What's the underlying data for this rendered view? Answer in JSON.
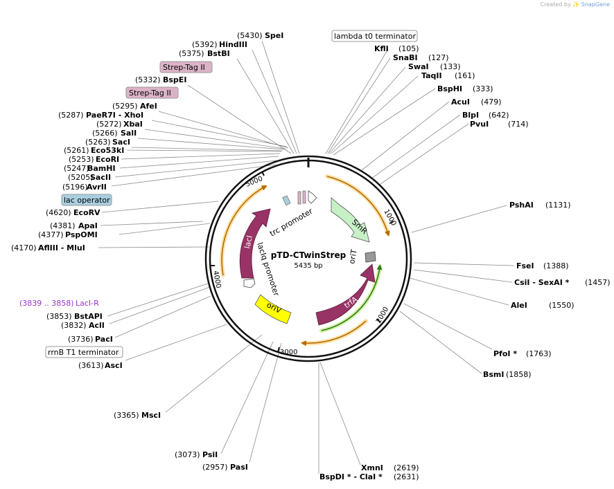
{
  "credit": {
    "created_by": "Created by",
    "brand": "SnapGene"
  },
  "plasmid": {
    "name": "pTD-CTwinStrep",
    "length": "5435 bp"
  },
  "ticks": [
    {
      "label": "1000"
    },
    {
      "label": "2000"
    },
    {
      "label": "3000"
    },
    {
      "label": "4000"
    },
    {
      "label": "5000"
    }
  ],
  "features": [
    {
      "label": "SmR",
      "color": "#c7f0c7"
    },
    {
      "label": "oriT",
      "color": "#999999"
    },
    {
      "label": "trfA",
      "color": "#993366"
    },
    {
      "label": "oriV",
      "color": "#ffff00"
    },
    {
      "label": "lacI",
      "color": "#993366"
    },
    {
      "label": "lacIq promoter",
      "color": "#ffffff"
    },
    {
      "label": "trc promoter",
      "color": "#ffffff"
    }
  ],
  "boxed_labels": [
    {
      "label": "lambda t0 terminator",
      "color": "#ffffff"
    },
    {
      "label": "Strep-Tag II",
      "color": "#dbb3c7"
    },
    {
      "label": "Strep-Tag II",
      "color": "#dbb3c7"
    },
    {
      "label": "lac operator",
      "color": "#a8cfe0"
    },
    {
      "label": "rrnB T1 terminator",
      "color": "#ffffff"
    }
  ],
  "primer": {
    "position": "(3839 .. 3858)",
    "name": "LacI-R",
    "color": "#9933cc"
  },
  "sites": [
    {
      "position": "(5430)",
      "name": "SpeI"
    },
    {
      "position": "(5392)",
      "name": "HindIII"
    },
    {
      "position": "(5375)",
      "name": "BstBI"
    },
    {
      "position": "(5332)",
      "name": "BspEI"
    },
    {
      "position": "(5295)",
      "name": "AfeI"
    },
    {
      "position": "(5287)",
      "name": "PaeR7I",
      "name2": "XhoI"
    },
    {
      "position": "(5272)",
      "name": "XbaI"
    },
    {
      "position": "(5266)",
      "name": "SalI"
    },
    {
      "position": "(5263)",
      "name": "SacI"
    },
    {
      "position": "(5261)",
      "name": "Eco53kI"
    },
    {
      "position": "(5253)",
      "name": "EcoRI"
    },
    {
      "position": "(5247)",
      "name": "BamHI"
    },
    {
      "position": "(5205)",
      "name": "SacII"
    },
    {
      "position": "(5196)",
      "name": "AvrII"
    },
    {
      "position": "(4620)",
      "name": "EcoRV"
    },
    {
      "position": "(4381)",
      "name": "ApaI"
    },
    {
      "position": "(4377)",
      "name": "PspOMI"
    },
    {
      "position": "(4170)",
      "name": "AflIII",
      "name2": "MluI"
    },
    {
      "position": "(3853)",
      "name": "BstAPI"
    },
    {
      "position": "(3832)",
      "name": "AclI"
    },
    {
      "position": "(3736)",
      "name": "PacI"
    },
    {
      "position": "(3613)",
      "name": "AscI"
    },
    {
      "position": "(3365)",
      "name": "MscI"
    },
    {
      "position": "(3073)",
      "name": "PsiI"
    },
    {
      "position": "(2957)",
      "name": "PasI"
    },
    {
      "position": "(105)",
      "name": "KflI"
    },
    {
      "position": "(127)",
      "name": "SnaBI"
    },
    {
      "position": "(133)",
      "name": "SwaI"
    },
    {
      "position": "(161)",
      "name": "TaqII"
    },
    {
      "position": "(333)",
      "name": "BspHI"
    },
    {
      "position": "(479)",
      "name": "AcuI"
    },
    {
      "position": "(642)",
      "name": "BlpI"
    },
    {
      "position": "(714)",
      "name": "PvuI"
    },
    {
      "position": "(1131)",
      "name": "PshAI"
    },
    {
      "position": "(1388)",
      "name": "FseI"
    },
    {
      "position": "(1457)",
      "name": "CsiI",
      "name2": "SexAI *"
    },
    {
      "position": "(1550)",
      "name": "AleI"
    },
    {
      "position": "(1763)",
      "name": "PfoI *"
    },
    {
      "position": "(1858)",
      "name": "BsmI"
    },
    {
      "position": "(2619)",
      "name": "XmnI"
    },
    {
      "position": "(2631)",
      "name": "BspDI *",
      "name2": "ClaI *"
    }
  ]
}
